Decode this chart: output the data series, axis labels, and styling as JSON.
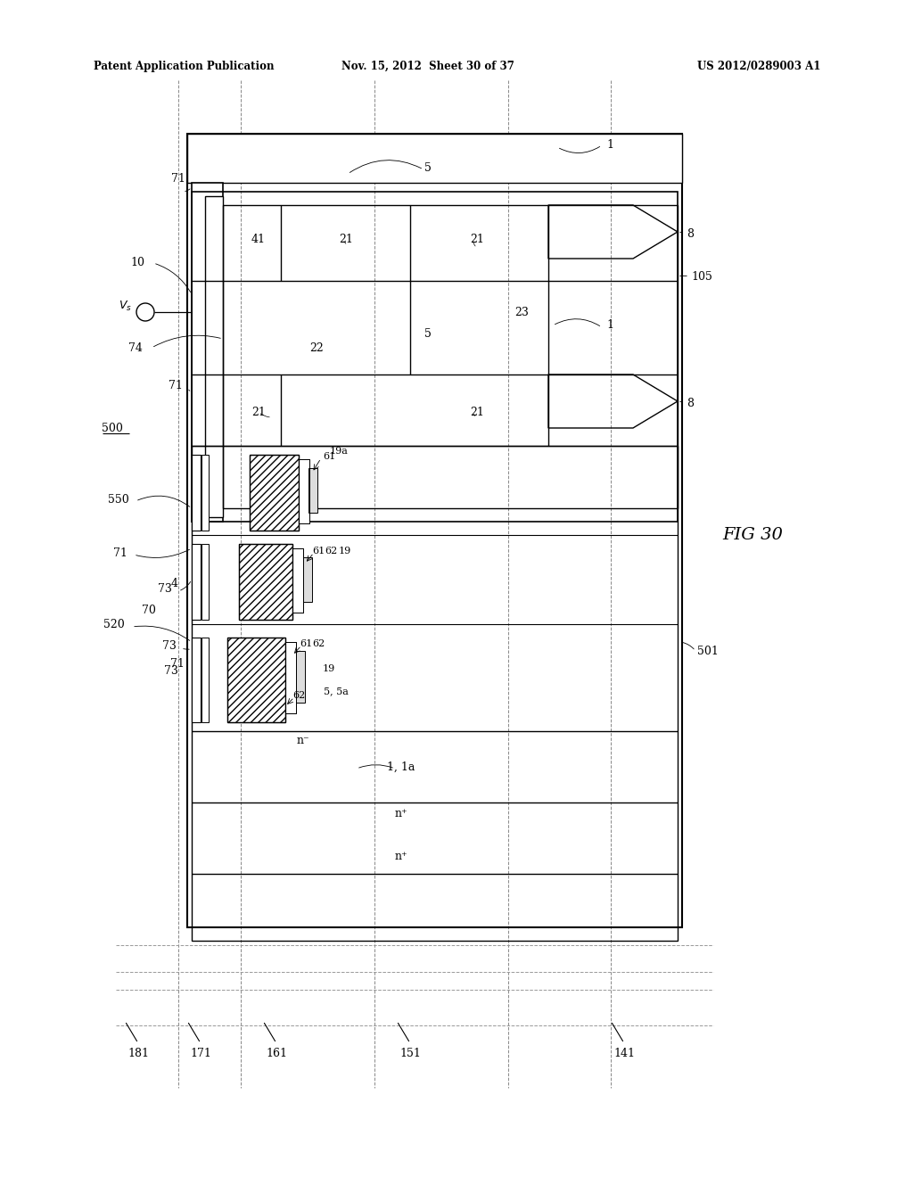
{
  "title_left": "Patent Application Publication",
  "title_mid": "Nov. 15, 2012  Sheet 30 of 37",
  "title_right": "US 2012/0289003 A1",
  "fig_label": "FIG 30",
  "background": "#ffffff",
  "line_color": "#000000"
}
